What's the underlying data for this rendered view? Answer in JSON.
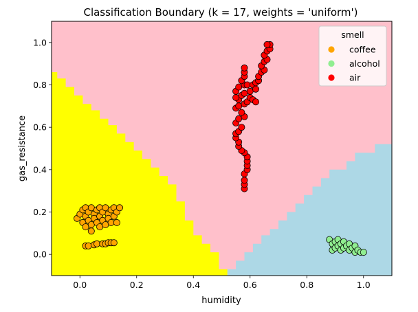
{
  "chart_data": {
    "type": "scatter",
    "title": "Classification Boundary (k = 17, weights = 'uniform')",
    "xlabel": "humidity",
    "ylabel": "gas_resistance",
    "xlim": [
      -0.1,
      1.1
    ],
    "ylim": [
      -0.1,
      1.1
    ],
    "xticks": [
      0.0,
      0.2,
      0.4,
      0.6,
      0.8,
      1.0
    ],
    "yticks": [
      0.0,
      0.2,
      0.4,
      0.6,
      0.8,
      1.0
    ],
    "xtick_labels": [
      "0.0",
      "0.2",
      "0.4",
      "0.6",
      "0.8",
      "1.0"
    ],
    "ytick_labels": [
      "0.0",
      "0.2",
      "0.4",
      "0.6",
      "0.8",
      "1.0"
    ],
    "grid": false,
    "legend": {
      "title": "smell",
      "placement": "top-right"
    },
    "regions": [
      {
        "class": "coffee",
        "color": "#ffff00",
        "boundary": [
          [
            -0.1,
            -0.1
          ],
          [
            -0.1,
            0.86
          ],
          [
            -0.08,
            0.86
          ],
          [
            -0.08,
            0.83
          ],
          [
            -0.05,
            0.83
          ],
          [
            -0.05,
            0.79
          ],
          [
            -0.02,
            0.79
          ],
          [
            -0.02,
            0.75
          ],
          [
            0.01,
            0.75
          ],
          [
            0.01,
            0.71
          ],
          [
            0.04,
            0.71
          ],
          [
            0.04,
            0.68
          ],
          [
            0.07,
            0.68
          ],
          [
            0.07,
            0.64
          ],
          [
            0.1,
            0.64
          ],
          [
            0.1,
            0.61
          ],
          [
            0.13,
            0.61
          ],
          [
            0.13,
            0.57
          ],
          [
            0.16,
            0.57
          ],
          [
            0.16,
            0.53
          ],
          [
            0.19,
            0.53
          ],
          [
            0.19,
            0.49
          ],
          [
            0.22,
            0.49
          ],
          [
            0.22,
            0.45
          ],
          [
            0.25,
            0.45
          ],
          [
            0.25,
            0.41
          ],
          [
            0.28,
            0.41
          ],
          [
            0.28,
            0.37
          ],
          [
            0.31,
            0.37
          ],
          [
            0.31,
            0.33
          ],
          [
            0.34,
            0.33
          ],
          [
            0.34,
            0.25
          ],
          [
            0.37,
            0.25
          ],
          [
            0.37,
            0.16
          ],
          [
            0.4,
            0.16
          ],
          [
            0.4,
            0.09
          ],
          [
            0.43,
            0.09
          ],
          [
            0.43,
            0.05
          ],
          [
            0.46,
            0.05
          ],
          [
            0.46,
            0.01
          ],
          [
            0.49,
            0.01
          ],
          [
            0.49,
            -0.07
          ],
          [
            0.52,
            -0.07
          ],
          [
            0.52,
            -0.1
          ]
        ]
      },
      {
        "class": "alcohol",
        "color": "#add8e6",
        "boundary": [
          [
            1.1,
            -0.1
          ],
          [
            0.52,
            -0.1
          ],
          [
            0.52,
            -0.07
          ],
          [
            0.55,
            -0.07
          ],
          [
            0.55,
            -0.03
          ],
          [
            0.58,
            -0.03
          ],
          [
            0.58,
            0.01
          ],
          [
            0.61,
            0.01
          ],
          [
            0.61,
            0.05
          ],
          [
            0.64,
            0.05
          ],
          [
            0.64,
            0.09
          ],
          [
            0.67,
            0.09
          ],
          [
            0.67,
            0.12
          ],
          [
            0.7,
            0.12
          ],
          [
            0.7,
            0.16
          ],
          [
            0.73,
            0.16
          ],
          [
            0.73,
            0.2
          ],
          [
            0.76,
            0.2
          ],
          [
            0.76,
            0.24
          ],
          [
            0.79,
            0.24
          ],
          [
            0.79,
            0.28
          ],
          [
            0.82,
            0.28
          ],
          [
            0.82,
            0.32
          ],
          [
            0.85,
            0.32
          ],
          [
            0.85,
            0.36
          ],
          [
            0.88,
            0.36
          ],
          [
            0.88,
            0.4
          ],
          [
            0.94,
            0.4
          ],
          [
            0.94,
            0.44
          ],
          [
            0.97,
            0.44
          ],
          [
            0.97,
            0.48
          ],
          [
            1.04,
            0.48
          ],
          [
            1.04,
            0.52
          ],
          [
            1.1,
            0.52
          ]
        ]
      },
      {
        "class": "air",
        "color": "#ffc0cb",
        "boundary": "remaining area"
      }
    ],
    "series": [
      {
        "name": "coffee",
        "color": "#ffa500",
        "points": [
          [
            -0.01,
            0.17
          ],
          [
            0.0,
            0.19
          ],
          [
            0.01,
            0.21
          ],
          [
            0.01,
            0.15
          ],
          [
            0.02,
            0.22
          ],
          [
            0.02,
            0.18
          ],
          [
            0.02,
            0.13
          ],
          [
            0.03,
            0.2
          ],
          [
            0.03,
            0.16
          ],
          [
            0.04,
            0.22
          ],
          [
            0.04,
            0.14
          ],
          [
            0.04,
            0.11
          ],
          [
            0.05,
            0.19
          ],
          [
            0.05,
            0.17
          ],
          [
            0.06,
            0.21
          ],
          [
            0.06,
            0.15
          ],
          [
            0.07,
            0.22
          ],
          [
            0.07,
            0.18
          ],
          [
            0.07,
            0.13
          ],
          [
            0.08,
            0.2
          ],
          [
            0.08,
            0.16
          ],
          [
            0.09,
            0.22
          ],
          [
            0.09,
            0.14
          ],
          [
            0.1,
            0.19
          ],
          [
            0.1,
            0.17
          ],
          [
            0.11,
            0.21
          ],
          [
            0.11,
            0.15
          ],
          [
            0.12,
            0.22
          ],
          [
            0.12,
            0.18
          ],
          [
            0.13,
            0.2
          ],
          [
            0.13,
            0.15
          ],
          [
            0.14,
            0.22
          ],
          [
            0.02,
            0.04
          ],
          [
            0.03,
            0.04
          ],
          [
            0.05,
            0.045
          ],
          [
            0.06,
            0.05
          ],
          [
            0.08,
            0.05
          ],
          [
            0.09,
            0.05
          ],
          [
            0.1,
            0.055
          ],
          [
            0.11,
            0.055
          ],
          [
            0.12,
            0.055
          ]
        ]
      },
      {
        "name": "alcohol",
        "color": "#90ee90",
        "points": [
          [
            0.88,
            0.07
          ],
          [
            0.89,
            0.05
          ],
          [
            0.89,
            0.02
          ],
          [
            0.9,
            0.06
          ],
          [
            0.9,
            0.03
          ],
          [
            0.91,
            0.07
          ],
          [
            0.91,
            0.04
          ],
          [
            0.92,
            0.05
          ],
          [
            0.92,
            0.02
          ],
          [
            0.93,
            0.06
          ],
          [
            0.93,
            0.03
          ],
          [
            0.94,
            0.04
          ],
          [
            0.95,
            0.05
          ],
          [
            0.95,
            0.02
          ],
          [
            0.96,
            0.03
          ],
          [
            0.97,
            0.04
          ],
          [
            0.97,
            0.01
          ],
          [
            0.98,
            0.02
          ],
          [
            0.99,
            0.01
          ],
          [
            1.0,
            0.01
          ]
        ]
      },
      {
        "name": "air",
        "color": "#ff0000",
        "points": [
          [
            0.58,
            0.31
          ],
          [
            0.58,
            0.33
          ],
          [
            0.58,
            0.35
          ],
          [
            0.58,
            0.38
          ],
          [
            0.59,
            0.4
          ],
          [
            0.59,
            0.42
          ],
          [
            0.59,
            0.44
          ],
          [
            0.59,
            0.46
          ],
          [
            0.58,
            0.48
          ],
          [
            0.57,
            0.49
          ],
          [
            0.56,
            0.51
          ],
          [
            0.56,
            0.53
          ],
          [
            0.55,
            0.55
          ],
          [
            0.55,
            0.57
          ],
          [
            0.56,
            0.58
          ],
          [
            0.57,
            0.6
          ],
          [
            0.55,
            0.62
          ],
          [
            0.56,
            0.64
          ],
          [
            0.58,
            0.65
          ],
          [
            0.57,
            0.67
          ],
          [
            0.55,
            0.69
          ],
          [
            0.56,
            0.7
          ],
          [
            0.58,
            0.71
          ],
          [
            0.59,
            0.72
          ],
          [
            0.56,
            0.73
          ],
          [
            0.55,
            0.74
          ],
          [
            0.57,
            0.75
          ],
          [
            0.58,
            0.76
          ],
          [
            0.6,
            0.74
          ],
          [
            0.61,
            0.73
          ],
          [
            0.62,
            0.72
          ],
          [
            0.6,
            0.77
          ],
          [
            0.55,
            0.77
          ],
          [
            0.56,
            0.79
          ],
          [
            0.58,
            0.8
          ],
          [
            0.57,
            0.82
          ],
          [
            0.58,
            0.84
          ],
          [
            0.58,
            0.86
          ],
          [
            0.58,
            0.88
          ],
          [
            0.59,
            0.8
          ],
          [
            0.61,
            0.8
          ],
          [
            0.62,
            0.81
          ],
          [
            0.63,
            0.82
          ],
          [
            0.62,
            0.78
          ],
          [
            0.63,
            0.84
          ],
          [
            0.64,
            0.86
          ],
          [
            0.65,
            0.87
          ],
          [
            0.64,
            0.89
          ],
          [
            0.65,
            0.91
          ],
          [
            0.66,
            0.92
          ],
          [
            0.65,
            0.94
          ],
          [
            0.66,
            0.96
          ],
          [
            0.67,
            0.97
          ],
          [
            0.67,
            0.99
          ],
          [
            0.66,
            0.99
          ]
        ]
      }
    ]
  }
}
